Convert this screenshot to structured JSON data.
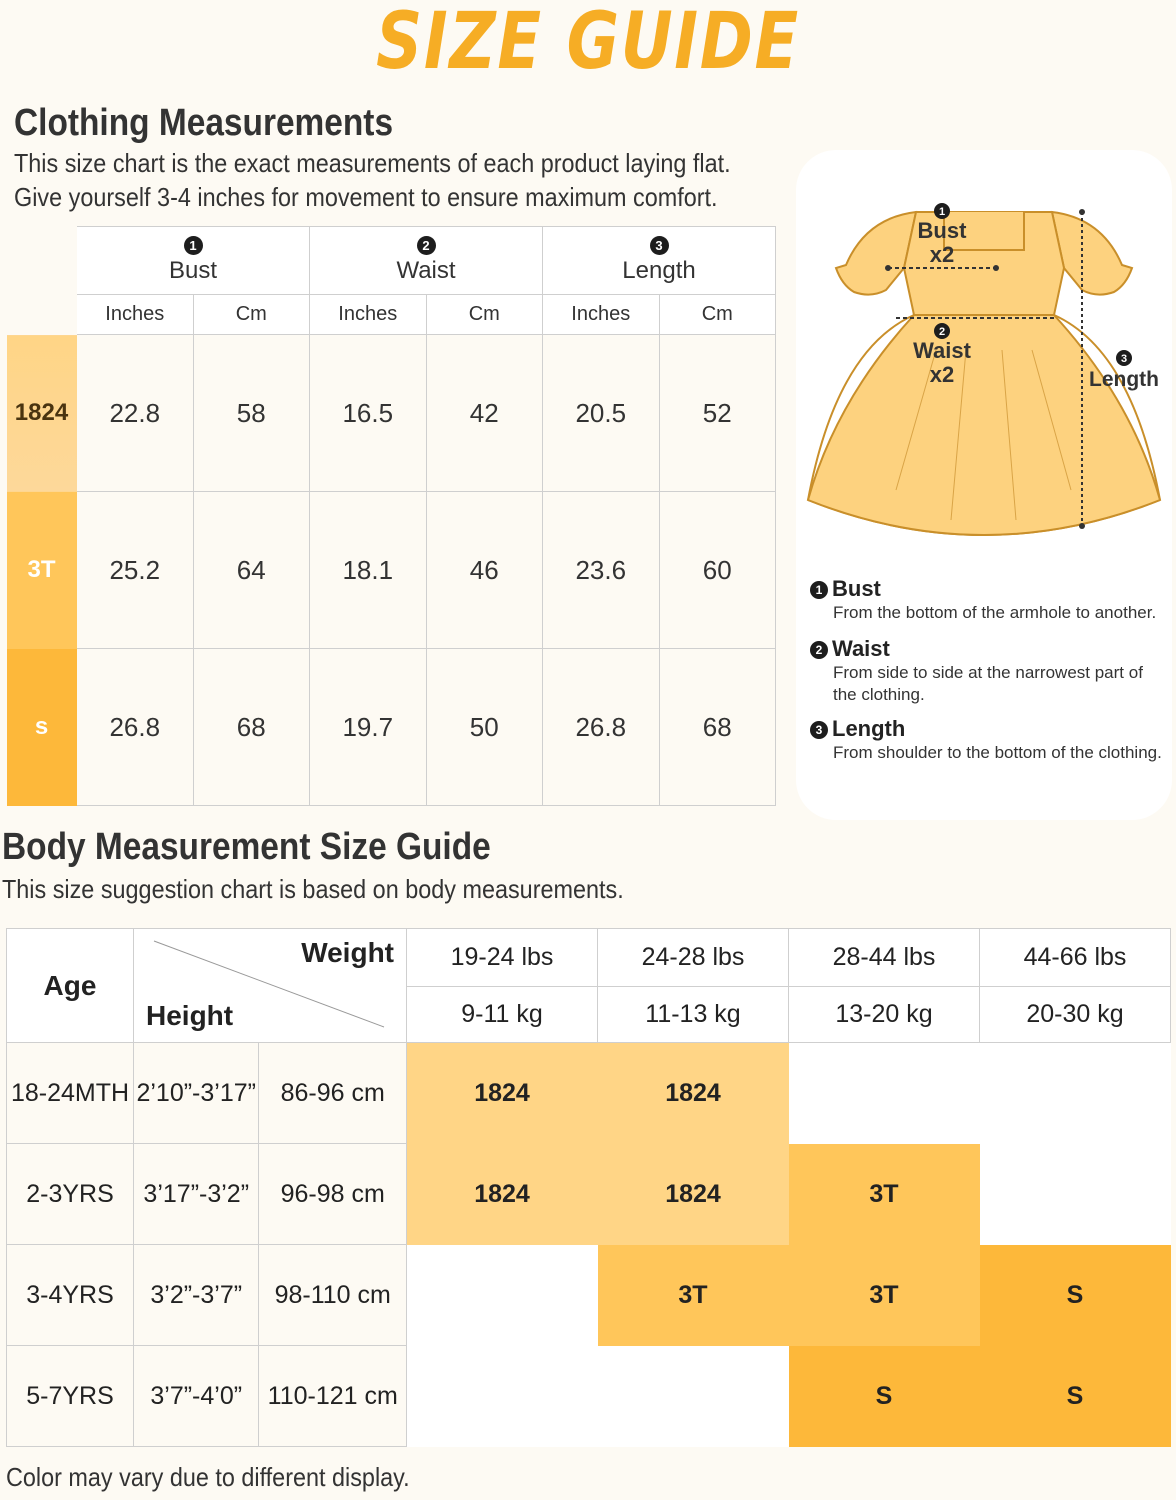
{
  "title": "SIZE GUIDE",
  "clothing": {
    "heading": "Clothing Measurements",
    "line1": "This size chart is the exact measurements of each product laying flat.",
    "line2": "Give yourself 3-4 inches for movement to ensure maximum comfort.",
    "groups": [
      {
        "num": "1",
        "label": "Bust"
      },
      {
        "num": "2",
        "label": "Waist"
      },
      {
        "num": "3",
        "label": "Length"
      }
    ],
    "units": [
      "Inches",
      "Cm",
      "Inches",
      "Cm",
      "Inches",
      "Cm"
    ],
    "rows": [
      {
        "size": "1824",
        "color": "#ffd586",
        "text_color": "#4a3410",
        "values": [
          "22.8",
          "58",
          "16.5",
          "42",
          "20.5",
          "52"
        ]
      },
      {
        "size": "3T",
        "color": "#ffc65a",
        "text_color": "#ffffff",
        "values": [
          "25.2",
          "64",
          "18.1",
          "46",
          "23.6",
          "60"
        ]
      },
      {
        "size": "s",
        "color": "#fdb83a",
        "text_color": "#ffffff",
        "values": [
          "26.8",
          "68",
          "19.7",
          "50",
          "26.8",
          "68"
        ]
      }
    ]
  },
  "dress": {
    "bust_num": "1",
    "bust_label": "Bust",
    "bust_mult": "x2",
    "waist_num": "2",
    "waist_label": "Waist",
    "waist_mult": "x2",
    "length_num": "3",
    "length_label": "Length",
    "fill_color": "#fdd27f"
  },
  "definitions": [
    {
      "num": "1",
      "title": "Bust",
      "text": "From the bottom of the armhole to another."
    },
    {
      "num": "2",
      "title": "Waist",
      "text": "From side to side at the narrowest part of the clothing."
    },
    {
      "num": "3",
      "title": "Length",
      "text": "From shoulder to the bottom of the clothing."
    }
  ],
  "body": {
    "heading": "Body Measurement Size Guide",
    "line1": "This size suggestion chart is based on body measurements.",
    "age_label": "Age",
    "weight_label": "Weight",
    "height_label": "Height",
    "weights_lbs": [
      "19-24 lbs",
      "24-28 lbs",
      "28-44 lbs",
      "44-66 lbs"
    ],
    "weights_kg": [
      "9-11 kg",
      "11-13 kg",
      "13-20 kg",
      "20-30 kg"
    ],
    "rows": [
      {
        "age": "18-24MTH",
        "ft": "2’10”-3’17”",
        "cm": "86-96 cm",
        "cells": [
          "1824",
          "1824",
          "",
          ""
        ]
      },
      {
        "age": "2-3YRS",
        "ft": "3’17”-3’2”",
        "cm": "96-98 cm",
        "cells": [
          "1824",
          "1824",
          "3T",
          ""
        ]
      },
      {
        "age": "3-4YRS",
        "ft": "3’2”-3’7”",
        "cm": "98-110 cm",
        "cells": [
          "",
          "3T",
          "3T",
          "S"
        ]
      },
      {
        "age": "5-7YRS",
        "ft": "3’7”-4’0”",
        "cm": "110-121 cm",
        "cells": [
          "",
          "",
          "S",
          "S"
        ]
      }
    ]
  },
  "footer": "Color may vary due to different display."
}
